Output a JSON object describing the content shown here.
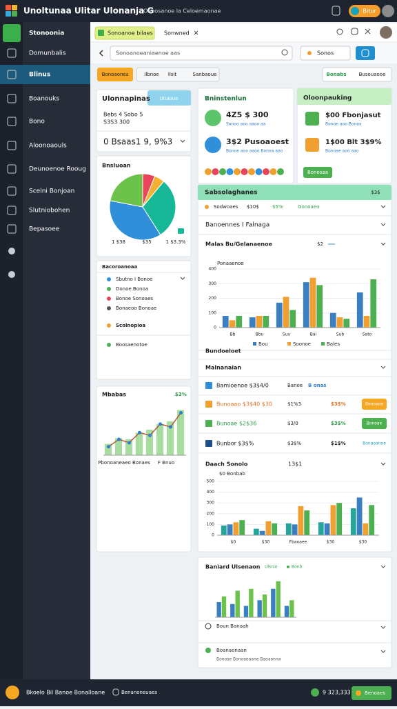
{
  "header": {
    "title": "Unoltunaa Ulitar Ulonanja G",
    "subtitle": "Oebosanoe la Celoemaonae",
    "badge": "Bitur"
  },
  "sidebar": {
    "items": [
      "Stonoonia",
      "Domunbalis",
      "Blinus",
      "Boanouks",
      "Bono",
      "Aloonoaouls",
      "Deunoenoe Rooug",
      "Scelni Bonjoan",
      "Slutniobohen",
      "Bepasoee"
    ]
  },
  "tabs": [
    "Sonoanoe bilaes",
    "Sonwned"
  ],
  "search": {
    "placeholder": "Sonoanoeaniaenoe aas",
    "select": "Sonos"
  },
  "filters": [
    "Bonoaones",
    "Ilbnoe",
    "Ilsit",
    "Sanbaoue"
  ],
  "views": [
    "Bonabs",
    "Busouaooe"
  ],
  "summary": {
    "title": "Ulonnapinas",
    "tab": "Ultaoue",
    "line1": "Bebs 4 Sobo 5",
    "line2": "S3S3 300",
    "value": "0 Bsaas1 9, 9%3"
  },
  "list": {
    "title": "Bacoroanoaa",
    "items": [
      "Sbutno I Bonoe",
      "Donoe Bonoa",
      "Bonoe Sonoaes",
      "Bonaeoo Bonoae",
      "Scolnopioa",
      "Boosaenotoe"
    ]
  },
  "stats_left": {
    "title": "Bninstenlun",
    "rows": [
      {
        "value": "4Z5 $ 300",
        "note": "Sonoo aoo aaoo aa"
      },
      {
        "value": "3$2 Pusoaoest",
        "note": "Bonoe aoo aaoo Bonoa aoo"
      }
    ]
  },
  "stats_right": {
    "title": "Oloonpauking",
    "rows": [
      {
        "value": "$00 Fbonjasut",
        "note": "Bonoe aoo Bonoa"
      },
      {
        "value": "1$00 Blt 3$9%",
        "note": "Bonoae aoo aao"
      }
    ],
    "button": "Bonosaa"
  },
  "panel": {
    "title": "Sabsolaghanes",
    "badge": "$3$",
    "row": [
      "Sodwoaes",
      "$10$",
      "$5%",
      "Gonoaea"
    ],
    "filter": "Banoennes I Falnaga",
    "chart_title": "Malas Bu/Gelanaenoe",
    "chart_badge": "$2",
    "chart_sub": "Ponaaenoe",
    "section": "Bundoeloet",
    "table_title": "Malnanaian",
    "table": [
      [
        "Bamioenoe $3$4/0",
        "Banoe",
        "B onas",
        ""
      ],
      [
        "Bunoaao $3$40 $30",
        "$1%3",
        "$3$%",
        "Bonoaoe"
      ],
      [
        "Bunoae $2$36",
        "$3/0",
        "$3$%",
        "Bonoae"
      ],
      [
        "Bunbor $3$%",
        "$3$%",
        "$1$%",
        "Bonaoanoe"
      ]
    ],
    "chart2_title": "Daach Sonolo",
    "chart2_value": "13$1",
    "chart2_sub": "$0 Bonbab"
  },
  "bottom_card": {
    "title": "Baniard Ulsenaon",
    "tags": [
      "Ulsnio",
      "Bonb"
    ],
    "items": [
      "Boun Banaah",
      "Boanaonaan"
    ],
    "note": "Bonose Bonoaeaane Baoaonna"
  },
  "footer": {
    "left": "Bkoelo Bil Banoe Bonalloane",
    "middle": "Benanoneuaes",
    "value": "9 323,333",
    "button": "Benoaes"
  },
  "chart_data": [
    {
      "type": "pie",
      "title": "Bnsluoan",
      "values": [
        6,
        5,
        30,
        37,
        22
      ],
      "colors": [
        "#e8455a",
        "#f4b030",
        "#17b897",
        "#2f8fd8",
        "#6cc24a"
      ],
      "footer": [
        "1 $38",
        "$35",
        "1 $3.3%"
      ]
    },
    {
      "type": "bar",
      "title": "Mbabas",
      "badge": "$3%",
      "ylim": [
        0,
        100
      ],
      "series": [
        {
          "color": "#a8dca0",
          "values": [
            20,
            30,
            28,
            40,
            45,
            55,
            60,
            80
          ]
        },
        {
          "type": "line",
          "color": "#b0573a",
          "values": [
            15,
            28,
            22,
            40,
            35,
            55,
            50,
            75
          ]
        }
      ],
      "footer": [
        "Pbonoaneaeo Bonaes",
        "F Bnuo"
      ]
    },
    {
      "type": "bar",
      "categories": [
        "Bb",
        "Bbu",
        "Suu",
        "Bai",
        "Sub",
        "Sato"
      ],
      "ylim": [
        0,
        400
      ],
      "yticks": [
        0,
        100,
        200,
        300,
        400
      ],
      "series": [
        {
          "name": "Bou",
          "color": "#3a7fc1",
          "values": [
            80,
            70,
            170,
            310,
            100,
            240
          ]
        },
        {
          "name": "Soonoe",
          "color": "#f0a030",
          "values": [
            50,
            80,
            210,
            340,
            70,
            80
          ]
        },
        {
          "name": "Bales",
          "color": "#4caf50",
          "values": [
            80,
            80,
            120,
            290,
            60,
            330
          ]
        }
      ]
    },
    {
      "type": "bar",
      "categories": [
        "$0",
        "$30",
        "Fbaoaee",
        "$30",
        "$30"
      ],
      "ylim": [
        0,
        500
      ],
      "yticks": [
        0,
        100,
        200,
        300,
        400,
        500
      ],
      "series": [
        {
          "color": "#26a69a",
          "values": [
            90,
            60,
            110,
            120,
            250
          ]
        },
        {
          "color": "#3a7fc1",
          "values": [
            100,
            40,
            100,
            110,
            350
          ]
        },
        {
          "color": "#f0a030",
          "values": [
            120,
            130,
            270,
            280,
            110
          ]
        },
        {
          "color": "#4caf50",
          "values": [
            140,
            110,
            230,
            300,
            280
          ]
        }
      ]
    },
    {
      "type": "bar",
      "ylim": [
        0,
        100
      ],
      "series": [
        {
          "color": "#3a7fc1",
          "values": [
            40,
            35,
            30,
            45,
            75,
            30
          ]
        },
        {
          "color": "#6cc24a",
          "values": [
            55,
            70,
            75,
            60,
            95,
            45
          ]
        }
      ]
    }
  ]
}
